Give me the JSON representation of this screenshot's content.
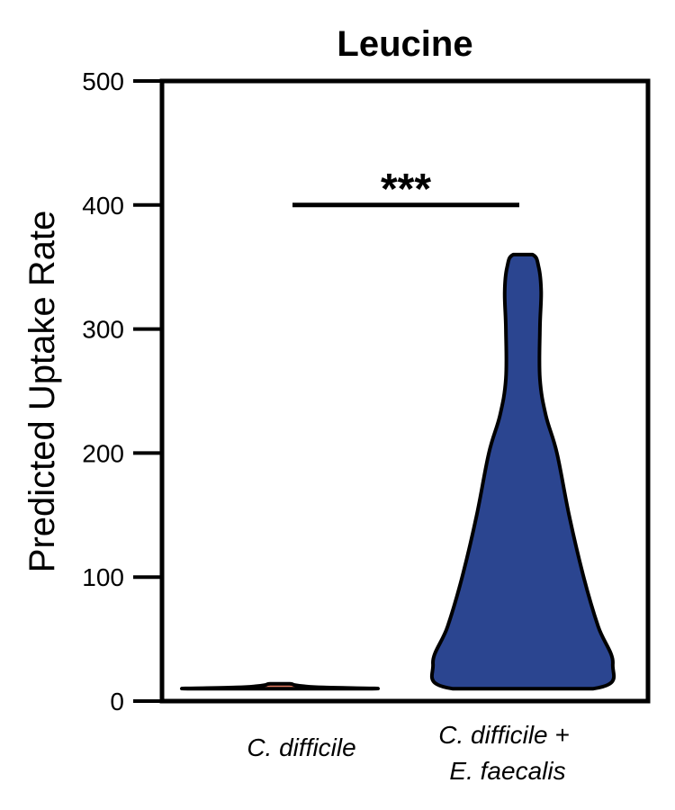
{
  "chart_data": {
    "type": "violin",
    "title": "Leucine",
    "xlabel": "",
    "ylabel": "Predicted Uptake Rate",
    "ylim": [
      0,
      500
    ],
    "yticks": [
      0,
      100,
      200,
      300,
      400,
      500
    ],
    "grid": false,
    "categories": [
      {
        "lines": [
          "C. difficile"
        ]
      },
      {
        "lines": [
          "C. difficile +",
          "E. faecalis"
        ]
      }
    ],
    "series": [
      {
        "category_index": 0,
        "fill": "#e07a5f",
        "profile": [
          {
            "y": 10,
            "halfwidth": 0.38
          },
          {
            "y": 11,
            "halfwidth": 0.18
          },
          {
            "y": 12,
            "halfwidth": 0.1
          },
          {
            "y": 13,
            "halfwidth": 0.06
          },
          {
            "y": 14,
            "halfwidth": 0.04
          }
        ]
      },
      {
        "category_index": 1,
        "fill": "#2b4590",
        "profile": [
          {
            "y": 10,
            "halfwidth": 0.29
          },
          {
            "y": 30,
            "halfwidth": 0.37
          },
          {
            "y": 60,
            "halfwidth": 0.31
          },
          {
            "y": 100,
            "halfwidth": 0.25
          },
          {
            "y": 150,
            "halfwidth": 0.19
          },
          {
            "y": 200,
            "halfwidth": 0.14
          },
          {
            "y": 230,
            "halfwidth": 0.095
          },
          {
            "y": 260,
            "halfwidth": 0.07
          },
          {
            "y": 300,
            "halfwidth": 0.07
          },
          {
            "y": 330,
            "halfwidth": 0.075
          },
          {
            "y": 350,
            "halfwidth": 0.065
          },
          {
            "y": 360,
            "halfwidth": 0.04
          }
        ]
      }
    ],
    "significance": {
      "from_category": 0,
      "to_category": 1,
      "y": 400,
      "label": "***"
    }
  }
}
